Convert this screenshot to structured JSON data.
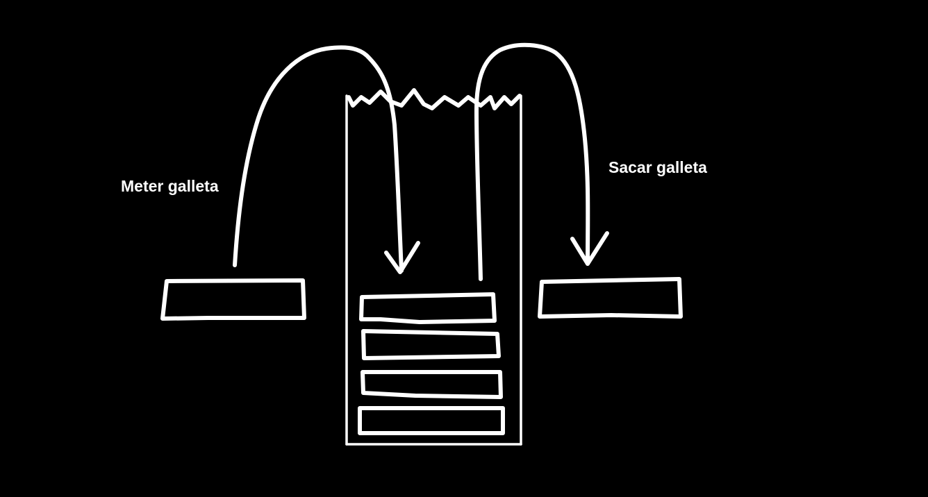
{
  "labels": {
    "push": "Meter galleta",
    "pop": "Sacar galleta"
  },
  "colors": {
    "background": "#000000",
    "stroke": "#ffffff",
    "text": "#ffffff"
  },
  "stack": {
    "items_inside": 4
  }
}
